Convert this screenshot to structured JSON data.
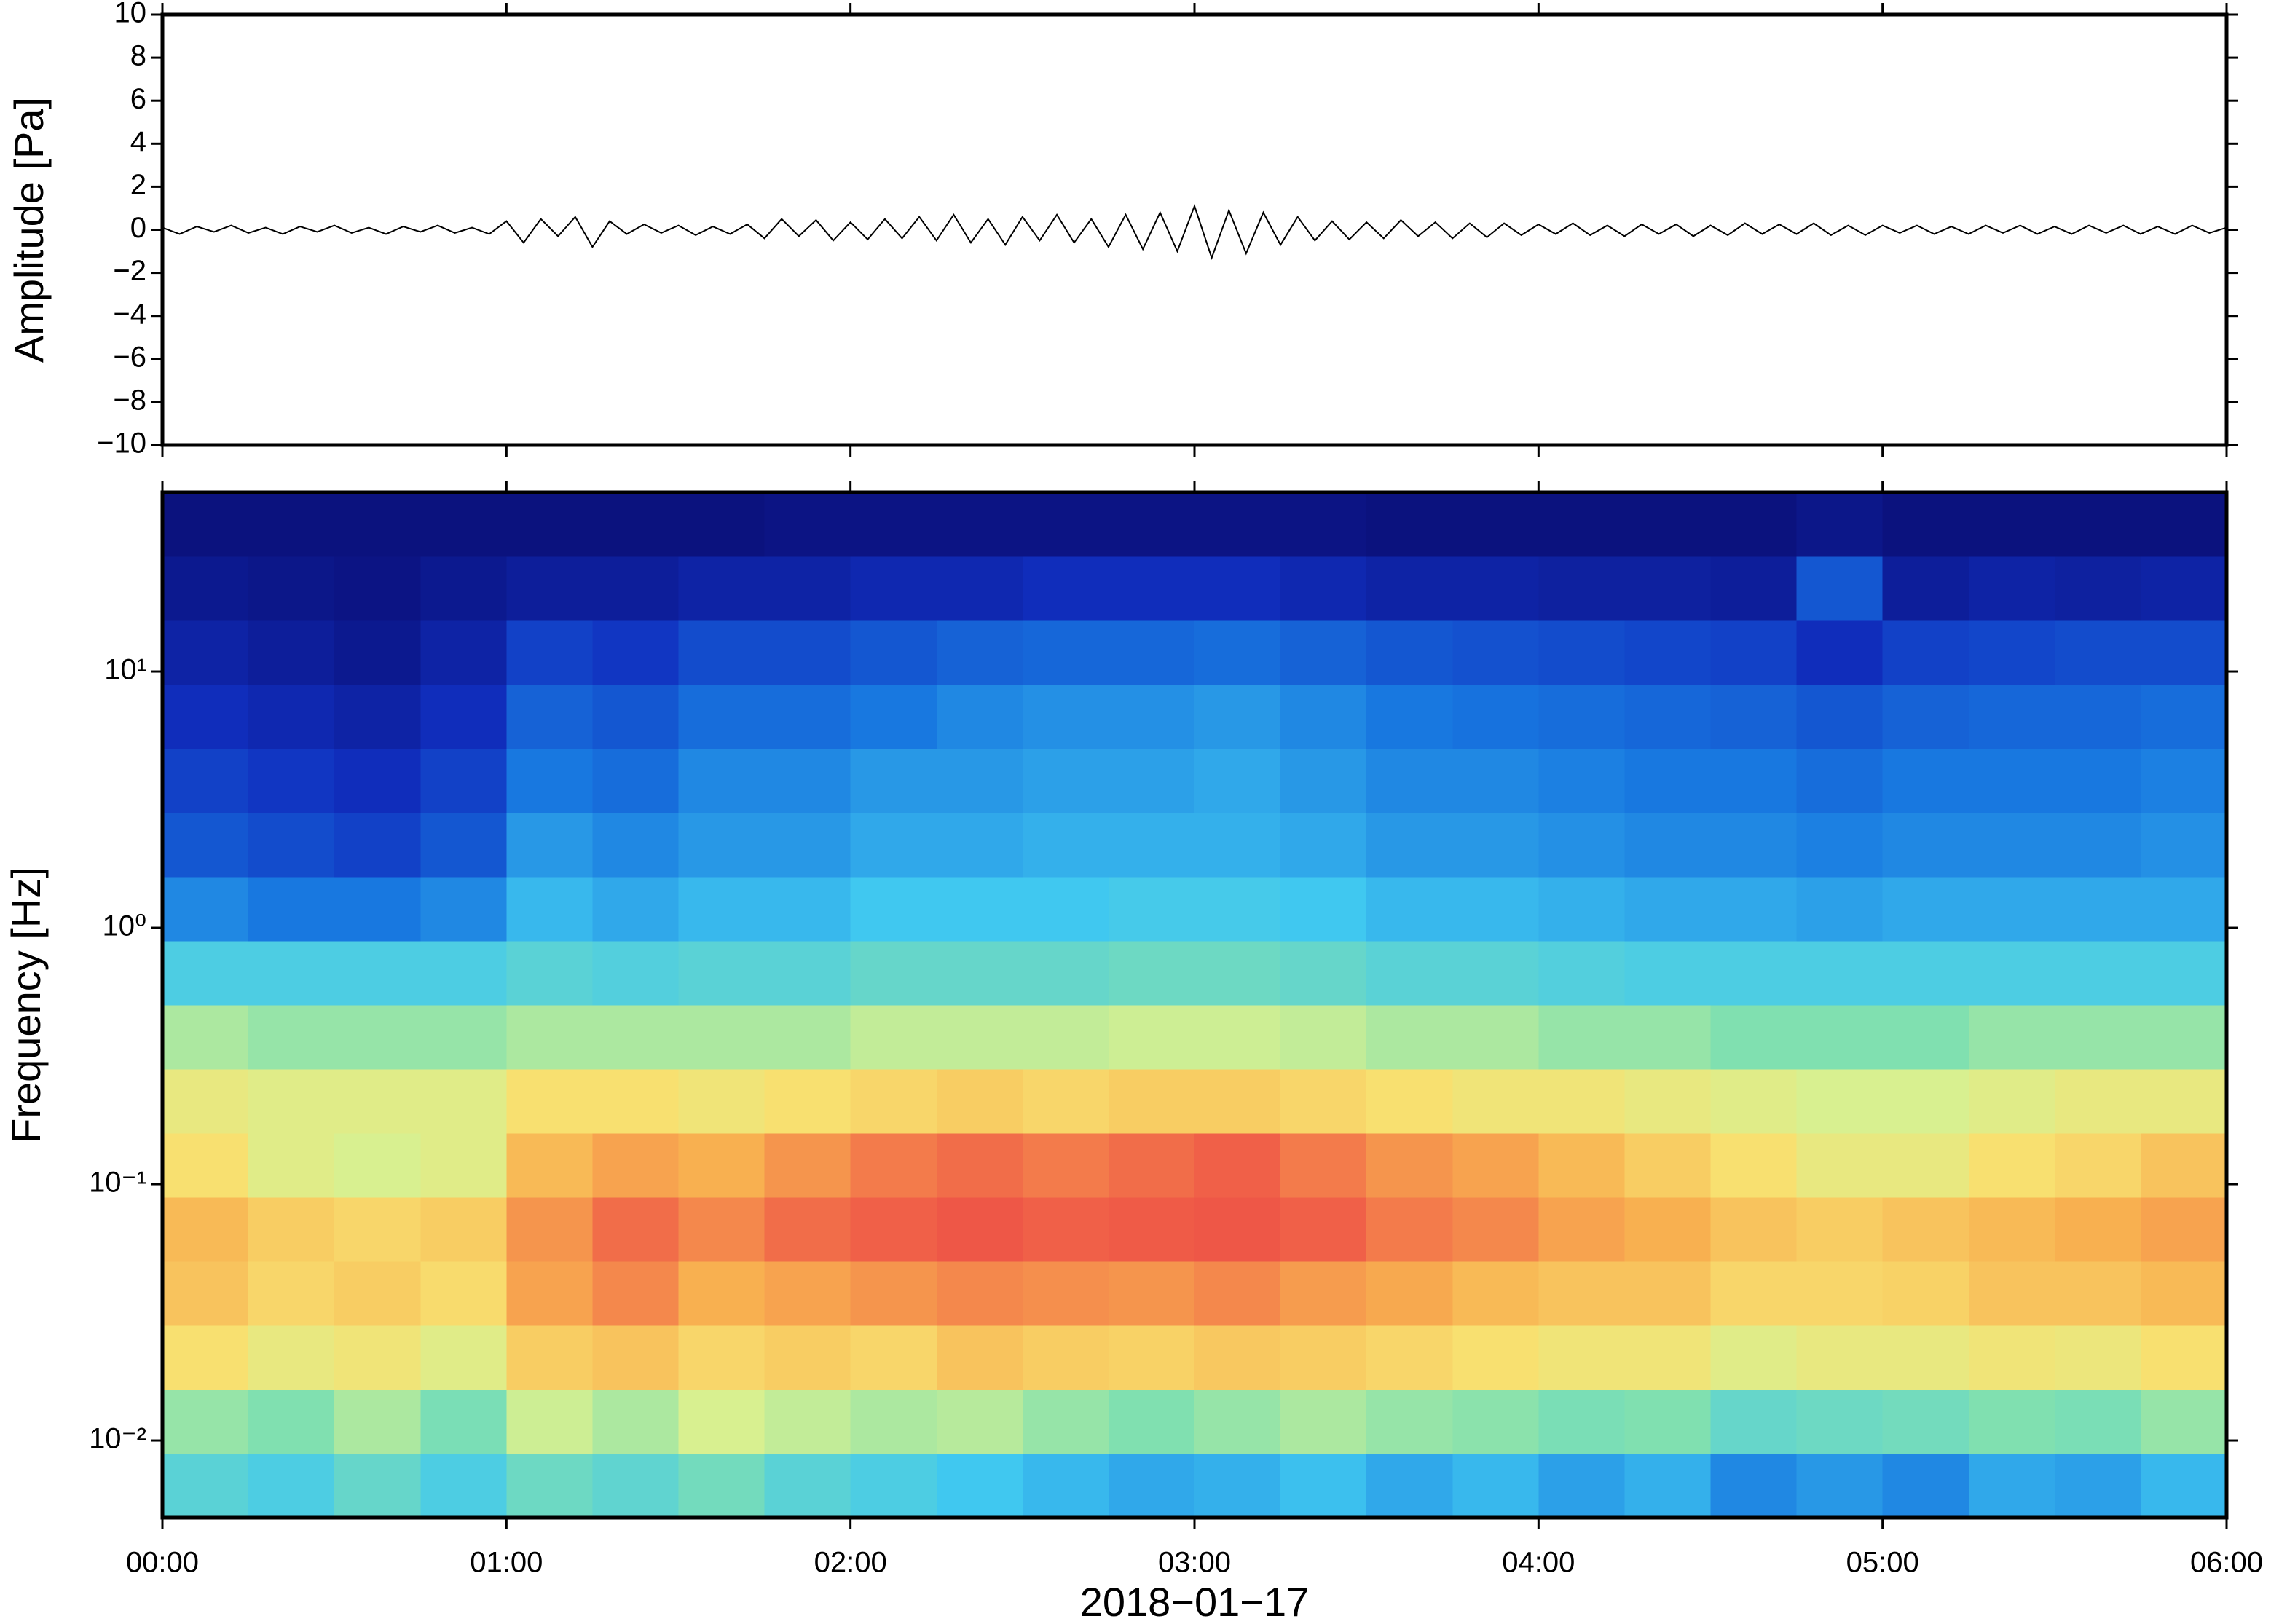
{
  "chart_data": [
    {
      "type": "line",
      "ylabel": "Amplitude [Pa]",
      "color": "#000000",
      "x": [
        0,
        3,
        6,
        9,
        12,
        15,
        18,
        21,
        24,
        27,
        30,
        33,
        36,
        39,
        42,
        45,
        48,
        51,
        54,
        57,
        60,
        63,
        66,
        69,
        72,
        75,
        78,
        81,
        84,
        87,
        90,
        93,
        96,
        99,
        102,
        105,
        108,
        111,
        114,
        117,
        120,
        123,
        126,
        129,
        132,
        135,
        138,
        141,
        144,
        147,
        150,
        153,
        156,
        159,
        162,
        165,
        168,
        171,
        174,
        177,
        180,
        183,
        186,
        189,
        192,
        195,
        198,
        201,
        204,
        207,
        210,
        213,
        216,
        219,
        222,
        225,
        228,
        231,
        234,
        237,
        240,
        243,
        246,
        249,
        252,
        255,
        258,
        261,
        264,
        267,
        270,
        273,
        276,
        279,
        282,
        285,
        288,
        291,
        294,
        297,
        300,
        303,
        306,
        309,
        312,
        315,
        318,
        321,
        324,
        327,
        330,
        333,
        336,
        339,
        342,
        345,
        348,
        351,
        354,
        357,
        360
      ],
      "values": [
        0.1,
        -0.2,
        0.15,
        -0.1,
        0.2,
        -0.15,
        0.1,
        -0.2,
        0.15,
        -0.1,
        0.2,
        -0.15,
        0.1,
        -0.2,
        0.15,
        -0.1,
        0.2,
        -0.15,
        0.1,
        -0.2,
        0.4,
        -0.6,
        0.5,
        -0.3,
        0.6,
        -0.8,
        0.4,
        -0.2,
        0.25,
        -0.15,
        0.2,
        -0.25,
        0.15,
        -0.2,
        0.25,
        -0.4,
        0.5,
        -0.3,
        0.45,
        -0.5,
        0.35,
        -0.45,
        0.5,
        -0.4,
        0.6,
        -0.5,
        0.7,
        -0.6,
        0.5,
        -0.7,
        0.6,
        -0.5,
        0.7,
        -0.6,
        0.5,
        -0.8,
        0.7,
        -0.9,
        0.8,
        -1.0,
        1.1,
        -1.3,
        0.9,
        -1.1,
        0.8,
        -0.7,
        0.6,
        -0.5,
        0.4,
        -0.45,
        0.35,
        -0.4,
        0.45,
        -0.3,
        0.35,
        -0.4,
        0.3,
        -0.35,
        0.3,
        -0.25,
        0.25,
        -0.2,
        0.3,
        -0.25,
        0.2,
        -0.3,
        0.25,
        -0.2,
        0.25,
        -0.3,
        0.2,
        -0.25,
        0.3,
        -0.2,
        0.25,
        -0.2,
        0.3,
        -0.25,
        0.2,
        -0.25,
        0.2,
        -0.15,
        0.2,
        -0.2,
        0.15,
        -0.2,
        0.2,
        -0.15,
        0.2,
        -0.2,
        0.15,
        -0.2,
        0.2,
        -0.15,
        0.2,
        -0.2,
        0.15,
        -0.2,
        0.2,
        -0.15,
        0.1
      ],
      "xlim": [
        0,
        360
      ],
      "xticks": [
        0,
        60,
        120,
        180,
        240,
        300,
        360
      ],
      "ylim": [
        -10,
        10
      ],
      "yticks": [
        {
          "value": -10,
          "label": "−10"
        },
        {
          "value": -8,
          "label": "−8"
        },
        {
          "value": -6,
          "label": "−6"
        },
        {
          "value": -4,
          "label": "−4"
        },
        {
          "value": -2,
          "label": "−2"
        },
        0,
        2,
        4,
        6,
        8,
        10
      ]
    },
    {
      "type": "heatmap",
      "ylabel": "Frequency [Hz]",
      "xlabel": "2018−01−17",
      "xbins": [
        0,
        15,
        30,
        45,
        60,
        75,
        90,
        105,
        120,
        135,
        150,
        165,
        180,
        195,
        210,
        225,
        240,
        255,
        270,
        285,
        300,
        315,
        330,
        345,
        360
      ],
      "ybins": [
        0.005,
        0.0089,
        0.0158,
        0.0281,
        0.05,
        0.089,
        0.158,
        0.281,
        0.5,
        0.89,
        1.58,
        2.81,
        5,
        8.9,
        15.8,
        28.1,
        50
      ],
      "values": [
        [
          42,
          40,
          44,
          40,
          45,
          43,
          46,
          42,
          40,
          38,
          36,
          34,
          35,
          37,
          34,
          36,
          33,
          35,
          30,
          32,
          30,
          34,
          33,
          36
        ],
        [
          50,
          48,
          52,
          47,
          55,
          52,
          56,
          54,
          52,
          53,
          50,
          48,
          50,
          52,
          50,
          49,
          47,
          48,
          44,
          45,
          46,
          48,
          47,
          50
        ],
        [
          64,
          60,
          62,
          58,
          68,
          70,
          66,
          68,
          66,
          70,
          68,
          67,
          69,
          68,
          66,
          64,
          62,
          62,
          58,
          60,
          60,
          62,
          61,
          64
        ],
        [
          70,
          66,
          68,
          65,
          76,
          80,
          74,
          76,
          78,
          80,
          79,
          78,
          80,
          77,
          75,
          72,
          70,
          70,
          66,
          66,
          67,
          70,
          70,
          72
        ],
        [
          72,
          68,
          66,
          68,
          78,
          84,
          80,
          84,
          86,
          88,
          86,
          87,
          88,
          86,
          82,
          80,
          76,
          74,
          70,
          68,
          70,
          72,
          74,
          76
        ],
        [
          64,
          58,
          56,
          58,
          72,
          76,
          74,
          78,
          82,
          84,
          82,
          84,
          86,
          82,
          78,
          76,
          72,
          68,
          64,
          60,
          60,
          64,
          66,
          70
        ],
        [
          60,
          58,
          58,
          58,
          64,
          64,
          62,
          64,
          66,
          68,
          66,
          68,
          68,
          66,
          64,
          62,
          62,
          60,
          58,
          56,
          56,
          58,
          60,
          60
        ],
        [
          52,
          50,
          50,
          50,
          52,
          52,
          52,
          52,
          54,
          54,
          54,
          55,
          55,
          54,
          52,
          52,
          50,
          50,
          48,
          48,
          48,
          50,
          50,
          50
        ],
        [
          40,
          40,
          40,
          40,
          42,
          41,
          42,
          42,
          44,
          44,
          44,
          45,
          45,
          44,
          42,
          42,
          41,
          40,
          40,
          40,
          40,
          40,
          40,
          40
        ],
        [
          30,
          28,
          28,
          30,
          36,
          34,
          36,
          36,
          38,
          38,
          38,
          39,
          39,
          38,
          36,
          36,
          35,
          34,
          34,
          33,
          34,
          34,
          34,
          34
        ],
        [
          22,
          20,
          18,
          22,
          32,
          30,
          32,
          32,
          34,
          34,
          35,
          35,
          35,
          34,
          32,
          32,
          31,
          30,
          30,
          29,
          30,
          30,
          30,
          31
        ],
        [
          18,
          16,
          14,
          18,
          28,
          26,
          30,
          30,
          32,
          32,
          33,
          33,
          34,
          32,
          30,
          30,
          29,
          28,
          28,
          26,
          28,
          28,
          28,
          29
        ],
        [
          14,
          12,
          10,
          14,
          24,
          22,
          26,
          26,
          28,
          30,
          31,
          31,
          32,
          30,
          28,
          27,
          26,
          25,
          24,
          22,
          24,
          25,
          25,
          26
        ],
        [
          10,
          8,
          6,
          10,
          18,
          16,
          20,
          20,
          22,
          24,
          25,
          25,
          26,
          24,
          22,
          21,
          20,
          19,
          18,
          14,
          18,
          19,
          20,
          20
        ],
        [
          6,
          5,
          4,
          6,
          8,
          8,
          10,
          10,
          12,
          12,
          14,
          14,
          14,
          12,
          10,
          10,
          9,
          9,
          8,
          22,
          8,
          10,
          9,
          10
        ],
        [
          3,
          3,
          3,
          3,
          3,
          3,
          3,
          4,
          4,
          4,
          4,
          4,
          4,
          4,
          3,
          3,
          3,
          3,
          3,
          5,
          3,
          3,
          3,
          3
        ]
      ],
      "colorscale": [
        [
          0,
          "#0a0a6e"
        ],
        [
          15,
          "#1030c0"
        ],
        [
          28,
          "#1878e0"
        ],
        [
          38,
          "#40c8f0"
        ],
        [
          48,
          "#80e0b0"
        ],
        [
          56,
          "#d8f090"
        ],
        [
          64,
          "#f8e070"
        ],
        [
          74,
          "#f8b050"
        ],
        [
          86,
          "#f06048"
        ],
        [
          100,
          "#e02040"
        ]
      ],
      "xlim": [
        0,
        360
      ],
      "xticks": [
        {
          "value": 0,
          "label": "00:00"
        },
        {
          "value": 60,
          "label": "01:00"
        },
        {
          "value": 120,
          "label": "02:00"
        },
        {
          "value": 180,
          "label": "03:00"
        },
        {
          "value": 240,
          "label": "04:00"
        },
        {
          "value": 300,
          "label": "05:00"
        },
        {
          "value": 360,
          "label": "06:00"
        }
      ],
      "ylim": [
        0.005,
        50
      ],
      "ylog": true,
      "yticks": [
        {
          "value": 0.01,
          "label": "10⁻²"
        },
        {
          "value": 0.1,
          "label": "10⁻¹"
        },
        {
          "value": 1,
          "label": "10⁰"
        },
        {
          "value": 10,
          "label": "10¹"
        }
      ]
    }
  ]
}
